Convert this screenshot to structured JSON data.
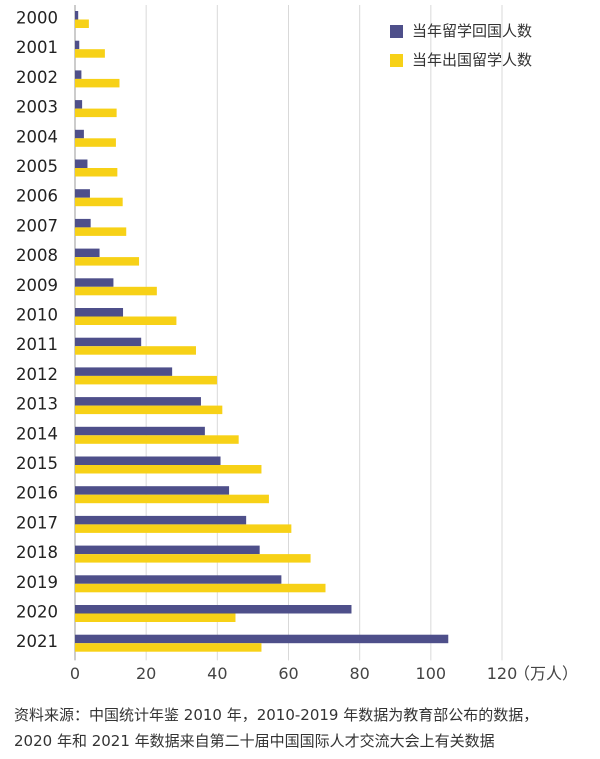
{
  "chart_data": {
    "type": "bar",
    "orientation": "horizontal",
    "categories": [
      "2000",
      "2001",
      "2002",
      "2003",
      "2004",
      "2005",
      "2006",
      "2007",
      "2008",
      "2009",
      "2010",
      "2011",
      "2012",
      "2013",
      "2014",
      "2015",
      "2016",
      "2017",
      "2018",
      "2019",
      "2020",
      "2021"
    ],
    "series": [
      {
        "name": "当年留学回国人数",
        "color": "#4e4f8a",
        "values": [
          0.9,
          1.2,
          1.8,
          2.0,
          2.5,
          3.5,
          4.2,
          4.4,
          6.9,
          10.8,
          13.5,
          18.6,
          27.3,
          35.4,
          36.5,
          40.9,
          43.3,
          48.1,
          51.9,
          58.0,
          77.7,
          104.9
        ]
      },
      {
        "name": "当年出国留学人数",
        "color": "#f7d117",
        "values": [
          3.9,
          8.4,
          12.5,
          11.7,
          11.5,
          11.9,
          13.4,
          14.4,
          18.0,
          23.0,
          28.5,
          34.0,
          39.9,
          41.4,
          46.0,
          52.4,
          54.5,
          60.8,
          66.2,
          70.4,
          45.1,
          52.4
        ]
      }
    ],
    "xlim": [
      0,
      120
    ],
    "x_ticks": [
      "0",
      "20",
      "40",
      "60",
      "80",
      "100",
      "120"
    ],
    "x_unit": "（万人）",
    "grid": "vertical",
    "legend_position": "top-right"
  },
  "source_note": {
    "line1": "资料来源：中国统计年鉴 2010 年，2010-2019 年数据为教育部公布的数据，",
    "line2": "2020 年和 2021 年数据来自第二十届中国国际人才交流大会上有关数据"
  }
}
